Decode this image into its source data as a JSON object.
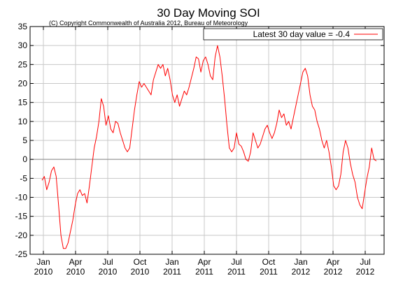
{
  "chart_data": {
    "type": "line",
    "title": "30 Day Moving SOI",
    "copyright": "(C) Copyright Commonwealth of Australia 2012, Bureau of Meteorology",
    "legend": {
      "label": "Latest 30 day value = -0.4",
      "placement": "top-right"
    },
    "ylim": [
      -25,
      35
    ],
    "yticks": [
      35,
      30,
      25,
      20,
      15,
      10,
      5,
      0,
      -5,
      -10,
      -15,
      -20,
      -25
    ],
    "xticks": [
      {
        "month": "Jan",
        "year": "2010"
      },
      {
        "month": "Apr",
        "year": "2010"
      },
      {
        "month": "Jul",
        "year": "2010"
      },
      {
        "month": "Oct",
        "year": "2010"
      },
      {
        "month": "Jan",
        "year": "2011"
      },
      {
        "month": "Apr",
        "year": "2011"
      },
      {
        "month": "Jul",
        "year": "2011"
      },
      {
        "month": "Oct",
        "year": "2011"
      },
      {
        "month": "Jan",
        "year": "2012"
      },
      {
        "month": "Apr",
        "year": "2012"
      },
      {
        "month": "Jul",
        "year": "2012"
      }
    ],
    "grid": true,
    "zero_line": true,
    "colors": {
      "series": "#ff0000",
      "grid": "#c8c8c8",
      "axis": "#000000"
    },
    "series": [
      {
        "values": [
          -5.5,
          -4.5,
          -8,
          -6,
          -3,
          -2,
          -4.5,
          -12,
          -20,
          -23.5,
          -23.5,
          -22,
          -19,
          -16,
          -12,
          -9,
          -8,
          -9.5,
          -9,
          -11.5,
          -7,
          -2,
          3,
          6,
          10,
          16,
          14,
          9,
          11.5,
          8,
          7,
          10,
          9.5,
          7,
          5,
          3,
          2,
          3,
          8,
          13,
          17,
          20.5,
          19,
          20,
          19,
          18,
          17,
          21,
          23,
          25,
          24,
          25,
          22,
          24,
          21,
          17,
          15,
          17,
          14,
          16,
          18,
          17,
          19,
          21.5,
          24,
          27,
          26.5,
          23,
          26,
          27,
          25,
          22,
          21,
          27,
          30,
          27,
          22,
          16,
          9,
          3,
          2,
          3,
          7,
          4,
          3.5,
          2,
          0,
          -0.5,
          2,
          7,
          5,
          3,
          4,
          6,
          8,
          9,
          7,
          5.5,
          7,
          9.5,
          13,
          11,
          12,
          9,
          10,
          8,
          11,
          14,
          17,
          20,
          23,
          24,
          22,
          17,
          14,
          13,
          10,
          8,
          5,
          3,
          5,
          2,
          -2,
          -7,
          -8,
          -7,
          -4,
          2,
          5,
          3,
          -1,
          -4,
          -6,
          -10,
          -12,
          -13,
          -9,
          -5,
          -2,
          3,
          0,
          -0.4
        ]
      }
    ]
  }
}
